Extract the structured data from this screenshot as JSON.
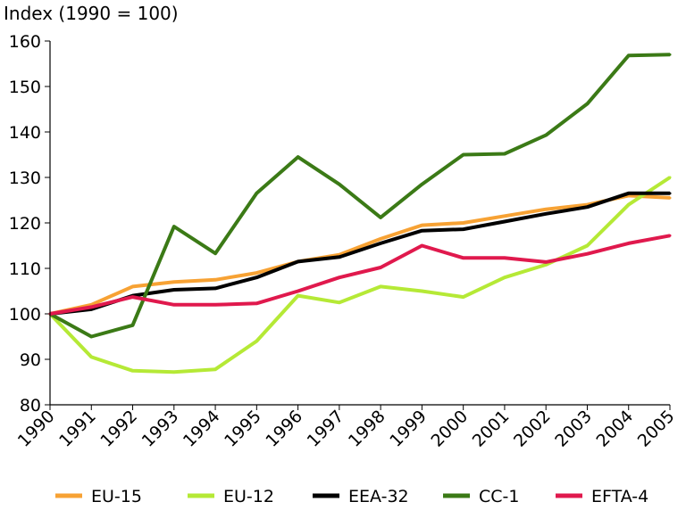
{
  "chart_data": {
    "type": "line",
    "title": "Index (1990 = 100)",
    "xlabel": "",
    "ylabel": "",
    "ylim": [
      80,
      160
    ],
    "yticks": [
      80,
      90,
      100,
      110,
      120,
      130,
      140,
      150,
      160
    ],
    "grid": false,
    "legend": "bottom",
    "categories": [
      "1990",
      "1991",
      "1992",
      "1993",
      "1994",
      "1995",
      "1996",
      "1997",
      "1998",
      "1999",
      "2000",
      "2001",
      "2002",
      "2003",
      "2004",
      "2005"
    ],
    "series": [
      {
        "name": "EU-15",
        "color": "#f7a234",
        "values": [
          100,
          102,
          106,
          107,
          107.5,
          109,
          111.5,
          113,
          116.5,
          119.5,
          120,
          121.5,
          123,
          124,
          126,
          125.5
        ]
      },
      {
        "name": "EU-12",
        "color": "#b5e936",
        "values": [
          100,
          90.5,
          87.5,
          87.2,
          87.8,
          94,
          104,
          102.5,
          106,
          105,
          103.7,
          108,
          110.8,
          115,
          124,
          130
        ]
      },
      {
        "name": "EEA-32",
        "color": "#000000",
        "values": [
          100,
          101,
          104,
          105.3,
          105.6,
          108,
          111.5,
          112.5,
          115.5,
          118.3,
          118.6,
          120.3,
          122,
          123.5,
          126.5,
          126.5
        ]
      },
      {
        "name": "CC-1",
        "color": "#3b7a16",
        "values": [
          100,
          95,
          97.5,
          119.2,
          113.3,
          126.5,
          134.5,
          128.5,
          121.2,
          128.5,
          135,
          135.2,
          139.3,
          146.2,
          156.8,
          157
        ]
      },
      {
        "name": "EFTA-4",
        "color": "#e0194d",
        "values": [
          100,
          101.5,
          103.7,
          102,
          102,
          102.3,
          105,
          108,
          110.2,
          115,
          112.3,
          112.3,
          111.4,
          113.2,
          115.5,
          117.2
        ]
      }
    ]
  }
}
